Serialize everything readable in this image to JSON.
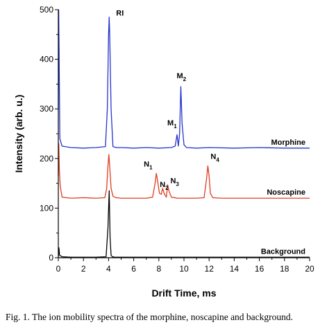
{
  "caption": "Fig. 1.  The ion mobility spectra of the morphine, noscapine and background.",
  "chart_data": {
    "type": "line",
    "xlabel": "Drift Time, ms",
    "ylabel": "Intensity (arb. u.)",
    "xlim": [
      0,
      20
    ],
    "ylim": [
      0,
      500
    ],
    "x_ticks": [
      0,
      2,
      4,
      6,
      8,
      10,
      12,
      14,
      16,
      18,
      20
    ],
    "y_ticks": [
      0,
      100,
      200,
      300,
      400,
      500
    ],
    "grid": false,
    "series": [
      {
        "name": "Background",
        "color": "#000000",
        "x": [
          0,
          0.05,
          0.1,
          0.3,
          1,
          2,
          3,
          3.8,
          3.95,
          4.05,
          4.12,
          4.2,
          4.3,
          4.5,
          5,
          6,
          8,
          10,
          12,
          14,
          16,
          18,
          20
        ],
        "y": [
          2,
          20,
          5,
          2,
          1,
          1,
          1,
          2,
          60,
          135,
          40,
          5,
          2,
          1,
          1,
          1,
          1,
          1,
          1,
          1,
          1,
          1,
          1
        ]
      },
      {
        "name": "Noscapine",
        "color": "#e03a1e",
        "x": [
          0,
          0.04,
          0.08,
          0.15,
          0.3,
          1,
          2,
          3,
          3.7,
          3.85,
          3.95,
          4.02,
          4.1,
          4.2,
          4.35,
          4.6,
          5,
          6,
          7,
          7.5,
          7.7,
          7.8,
          7.9,
          8.05,
          8.2,
          8.3,
          8.45,
          8.6,
          8.7,
          8.8,
          9,
          9.5,
          10,
          11,
          11.6,
          11.8,
          11.9,
          12,
          12.1,
          12.3,
          13,
          14,
          16,
          18,
          20
        ],
        "y": [
          165,
          230,
          180,
          145,
          122,
          120,
          121,
          120,
          121,
          140,
          185,
          208,
          180,
          140,
          124,
          121,
          120,
          120,
          120,
          122,
          150,
          170,
          155,
          130,
          128,
          140,
          128,
          122,
          147,
          135,
          122,
          120,
          120,
          120,
          121,
          160,
          185,
          165,
          130,
          121,
          120,
          120,
          120,
          120,
          120
        ]
      },
      {
        "name": "Morphine",
        "color": "#2233cc",
        "x": [
          0,
          0.03,
          0.06,
          0.12,
          0.3,
          1,
          2,
          3,
          3.75,
          3.9,
          4.0,
          4.05,
          4.1,
          4.2,
          4.35,
          4.6,
          5,
          6,
          7,
          8,
          9,
          9.3,
          9.45,
          9.55,
          9.65,
          9.75,
          9.85,
          10,
          10.2,
          11,
          12,
          14,
          16,
          18,
          20
        ],
        "y": [
          300,
          500,
          420,
          240,
          225,
          222,
          221,
          222,
          224,
          300,
          450,
          485,
          440,
          300,
          224,
          222,
          222,
          221,
          222,
          221,
          222,
          225,
          248,
          225,
          250,
          345,
          270,
          228,
          222,
          221,
          222,
          221,
          222,
          221,
          221
        ]
      }
    ],
    "peak_labels": [
      {
        "id": "rl",
        "main": "RI",
        "sub": "",
        "x": 4.05,
        "y": 485
      },
      {
        "id": "m1",
        "main": "M",
        "sub": "1",
        "x": 9.45,
        "y": 250
      },
      {
        "id": "m2",
        "main": "M",
        "sub": "2",
        "x": 9.75,
        "y": 345
      },
      {
        "id": "n1",
        "main": "N",
        "sub": "1",
        "x": 7.8,
        "y": 170
      },
      {
        "id": "n2",
        "main": "N",
        "sub": "2",
        "x": 8.3,
        "y": 140
      },
      {
        "id": "n3",
        "main": "N",
        "sub": "3",
        "x": 8.7,
        "y": 147
      },
      {
        "id": "n4",
        "main": "N",
        "sub": "4",
        "x": 11.9,
        "y": 185
      }
    ]
  }
}
